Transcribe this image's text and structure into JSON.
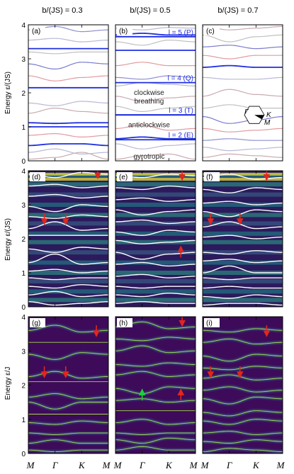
{
  "chart_data": {
    "type": "line",
    "columns": [
      {
        "title": "b/(JS) = 0.3"
      },
      {
        "title": "b/(JS) = 0.5"
      },
      {
        "title": "b/(JS) = 0.7"
      }
    ],
    "rows": [
      {
        "ylabel": "Energy ε/(JS)",
        "style": "bands"
      },
      {
        "ylabel": "Energy ε/(JS)",
        "style": "spectral"
      },
      {
        "ylabel": "Energy ε/J",
        "style": "dark"
      }
    ],
    "x_ticks": [
      "M",
      "Γ",
      "K",
      "M"
    ],
    "y_ticks": [
      "0",
      "1",
      "2",
      "3",
      "4"
    ],
    "ylim": [
      0,
      4
    ],
    "panels": [
      {
        "label": "(a)",
        "row": 0,
        "col": 0,
        "bands": [
          [
            0.05,
            0.1,
            0.25
          ],
          [
            0.25,
            0.35,
            0.2
          ],
          [
            0.45,
            0.5,
            0.5
          ],
          [
            0.75,
            0.8,
            0.7
          ],
          [
            1.0,
            1.0,
            1.0
          ],
          [
            1.12,
            1.1,
            1.12
          ],
          [
            1.4,
            1.55,
            1.45
          ],
          [
            1.7,
            1.62,
            1.75
          ],
          [
            2.15,
            2.15,
            2.15
          ],
          [
            2.5,
            2.35,
            2.45
          ],
          [
            2.85,
            2.7,
            2.9
          ],
          [
            3.2,
            3.15,
            3.2
          ],
          [
            3.3,
            3.3,
            3.3
          ],
          [
            3.55,
            3.6,
            3.5
          ],
          [
            3.85,
            3.95,
            3.8
          ]
        ]
      },
      {
        "label": "(b)",
        "row": 0,
        "col": 1,
        "bands": [
          [
            0.05,
            0.15,
            0.2
          ],
          [
            0.5,
            0.35,
            0.45
          ],
          [
            0.65,
            0.7,
            0.65
          ],
          [
            0.95,
            1.05,
            0.9
          ],
          [
            1.35,
            1.35,
            1.35
          ],
          [
            1.6,
            1.45,
            1.55
          ],
          [
            1.9,
            1.75,
            1.85
          ],
          [
            2.2,
            2.3,
            2.25
          ],
          [
            2.45,
            2.4,
            2.5
          ],
          [
            2.8,
            2.9,
            2.8
          ],
          [
            3.25,
            3.25,
            3.25
          ],
          [
            3.5,
            3.4,
            3.55
          ],
          [
            3.7,
            3.75,
            3.7
          ],
          [
            3.9,
            3.85,
            3.92
          ]
        ]
      },
      {
        "label": "(c)",
        "row": 0,
        "col": 2,
        "bands": [
          [
            0.1,
            0.2,
            0.15
          ],
          [
            0.4,
            0.3,
            0.35
          ],
          [
            0.6,
            0.65,
            0.6
          ],
          [
            0.95,
            0.85,
            0.9
          ],
          [
            1.3,
            1.1,
            1.2
          ],
          [
            1.55,
            1.65,
            1.55
          ],
          [
            1.9,
            2.1,
            1.95
          ],
          [
            2.45,
            2.4,
            2.4
          ],
          [
            2.75,
            2.8,
            2.75
          ],
          [
            3.1,
            3.0,
            3.1
          ],
          [
            3.35,
            3.4,
            3.3
          ],
          [
            3.7,
            3.5,
            3.65
          ],
          [
            3.95,
            3.85,
            3.9
          ]
        ]
      },
      {
        "label": "(d)",
        "row": 1,
        "col": 0,
        "bands": [
          [
            0.15,
            0.05,
            0.1
          ],
          [
            0.35,
            0.45,
            0.3
          ],
          [
            0.6,
            0.55,
            0.65
          ],
          [
            0.85,
            0.8,
            0.85
          ],
          [
            1.05,
            1.1,
            1.0
          ],
          [
            1.3,
            1.55,
            1.25
          ],
          [
            1.7,
            1.6,
            1.75
          ],
          [
            2.1,
            2.1,
            2.1
          ],
          [
            2.3,
            2.5,
            2.25
          ],
          [
            2.65,
            2.6,
            2.7
          ],
          [
            2.95,
            2.8,
            3.0
          ],
          [
            3.25,
            3.3,
            3.2
          ],
          [
            3.55,
            3.6,
            3.5
          ],
          [
            3.9,
            3.8,
            3.95
          ]
        ]
      },
      {
        "label": "(e)",
        "row": 1,
        "col": 1,
        "bands": [
          [
            0.1,
            0.15,
            0.1
          ],
          [
            0.35,
            0.3,
            0.4
          ],
          [
            0.6,
            0.55,
            0.6
          ],
          [
            0.9,
            0.95,
            0.85
          ],
          [
            1.25,
            1.3,
            1.2
          ],
          [
            1.6,
            1.4,
            1.55
          ],
          [
            1.95,
            1.85,
            1.9
          ],
          [
            2.2,
            2.1,
            2.25
          ],
          [
            2.5,
            2.55,
            2.45
          ],
          [
            2.85,
            2.7,
            2.8
          ],
          [
            3.15,
            3.2,
            3.1
          ],
          [
            3.5,
            3.45,
            3.55
          ],
          [
            3.85,
            3.8,
            3.9
          ]
        ]
      },
      {
        "label": "(f)",
        "row": 1,
        "col": 2,
        "bands": [
          [
            0.05,
            0.1,
            0.1
          ],
          [
            0.3,
            0.25,
            0.35
          ],
          [
            0.55,
            0.6,
            0.55
          ],
          [
            0.85,
            0.8,
            0.85
          ],
          [
            1.0,
            1.2,
            1.0
          ],
          [
            1.35,
            1.4,
            1.3
          ],
          [
            1.6,
            1.55,
            1.65
          ],
          [
            2.05,
            2.1,
            2.0
          ],
          [
            2.35,
            2.5,
            2.3
          ],
          [
            2.8,
            2.65,
            2.85
          ],
          [
            3.05,
            3.1,
            3.0
          ],
          [
            3.45,
            3.35,
            3.5
          ],
          [
            3.8,
            3.9,
            3.75
          ]
        ]
      },
      {
        "label": "(g)",
        "row": 2,
        "col": 0,
        "bands": [
          [
            0.1,
            0.05,
            0.1
          ],
          [
            0.3,
            0.4,
            0.3
          ],
          [
            0.6,
            0.55,
            0.6
          ],
          [
            0.9,
            0.85,
            0.95
          ],
          [
            1.15,
            1.15,
            1.15
          ],
          [
            1.5,
            1.3,
            1.5
          ],
          [
            1.65,
            1.75,
            1.6
          ],
          [
            2.1,
            2.1,
            2.1
          ],
          [
            2.25,
            2.4,
            2.2
          ],
          [
            2.9,
            2.75,
            2.95
          ],
          [
            3.25,
            3.25,
            3.25
          ],
          [
            3.6,
            3.75,
            3.55
          ]
        ]
      },
      {
        "label": "(h)",
        "row": 2,
        "col": 1,
        "bands": [
          [
            0.1,
            0.2,
            0.1
          ],
          [
            0.4,
            0.3,
            0.45
          ],
          [
            0.6,
            0.55,
            0.6
          ],
          [
            0.9,
            1.0,
            0.85
          ],
          [
            1.25,
            1.25,
            1.25
          ],
          [
            1.55,
            1.6,
            1.5
          ],
          [
            1.9,
            1.75,
            1.95
          ],
          [
            2.3,
            2.4,
            2.25
          ],
          [
            2.6,
            2.55,
            2.65
          ],
          [
            3.0,
            3.15,
            2.95
          ],
          [
            3.35,
            3.3,
            3.4
          ],
          [
            3.7,
            3.85,
            3.65
          ]
        ]
      },
      {
        "label": "(i)",
        "row": 2,
        "col": 2,
        "bands": [
          [
            0.05,
            0.15,
            0.1
          ],
          [
            0.35,
            0.3,
            0.4
          ],
          [
            0.6,
            0.65,
            0.55
          ],
          [
            0.95,
            0.85,
            1.0
          ],
          [
            1.2,
            1.1,
            1.25
          ],
          [
            1.6,
            1.45,
            1.65
          ],
          [
            1.85,
            1.95,
            1.8
          ],
          [
            2.2,
            2.3,
            2.15
          ],
          [
            2.5,
            2.45,
            2.55
          ],
          [
            2.85,
            2.7,
            2.9
          ],
          [
            3.25,
            3.35,
            3.2
          ],
          [
            3.6,
            3.55,
            3.65
          ]
        ]
      }
    ],
    "flat_bands": [
      {
        "panel": "(b)",
        "label": "l = 2 (E)",
        "y": 0.62
      },
      {
        "panel": "(b)",
        "label": "l = 3 (T)",
        "y": 1.35
      },
      {
        "panel": "(b)",
        "label": "l = 4 (Q)",
        "y": 2.3
      },
      {
        "panel": "(b)",
        "label": "l = 5 (P)",
        "y": 3.65
      }
    ],
    "mode_labels": [
      {
        "panel": "(b)",
        "text": "gyrotropic",
        "y": 0.12
      },
      {
        "panel": "(b)",
        "text": "anticlockwise",
        "y": 1.05
      },
      {
        "panel": "(b)",
        "text": "breathing",
        "y": 1.75
      },
      {
        "panel": "(b)",
        "text": "clockwise",
        "y": 2.0
      }
    ],
    "arrows": [
      {
        "panel": "(d)",
        "x": 2.6,
        "y": 3.85,
        "dir": "down",
        "color": "red"
      },
      {
        "panel": "(d)",
        "x": 0.6,
        "y": 2.5,
        "dir": "down",
        "color": "red"
      },
      {
        "panel": "(d)",
        "x": 1.4,
        "y": 2.5,
        "dir": "down",
        "color": "red"
      },
      {
        "panel": "(e)",
        "x": 2.5,
        "y": 3.8,
        "dir": "down",
        "color": "red"
      },
      {
        "panel": "(e)",
        "x": 2.45,
        "y": 1.7,
        "dir": "up",
        "color": "red"
      },
      {
        "panel": "(f)",
        "x": 2.4,
        "y": 3.8,
        "dir": "down",
        "color": "red"
      },
      {
        "panel": "(f)",
        "x": 0.3,
        "y": 2.5,
        "dir": "down",
        "color": "red"
      },
      {
        "panel": "(f)",
        "x": 1.4,
        "y": 2.5,
        "dir": "down",
        "color": "red"
      },
      {
        "panel": "(g)",
        "x": 2.55,
        "y": 3.5,
        "dir": "down",
        "color": "red"
      },
      {
        "panel": "(g)",
        "x": 0.6,
        "y": 2.3,
        "dir": "down",
        "color": "red"
      },
      {
        "panel": "(g)",
        "x": 1.4,
        "y": 2.3,
        "dir": "down",
        "color": "red"
      },
      {
        "panel": "(h)",
        "x": 2.5,
        "y": 3.8,
        "dir": "down",
        "color": "red"
      },
      {
        "panel": "(h)",
        "x": 2.45,
        "y": 1.8,
        "dir": "up",
        "color": "red"
      },
      {
        "panel": "(h)",
        "x": 1.0,
        "y": 1.8,
        "dir": "up",
        "color": "green"
      },
      {
        "panel": "(i)",
        "x": 2.4,
        "y": 3.5,
        "dir": "down",
        "color": "red"
      },
      {
        "panel": "(i)",
        "x": 0.3,
        "y": 2.3,
        "dir": "down",
        "color": "red"
      },
      {
        "panel": "(i)",
        "x": 1.4,
        "y": 2.3,
        "dir": "down",
        "color": "red"
      }
    ],
    "inset": {
      "panel": "(c)",
      "labels": [
        "Γ",
        "K",
        "M"
      ]
    }
  }
}
